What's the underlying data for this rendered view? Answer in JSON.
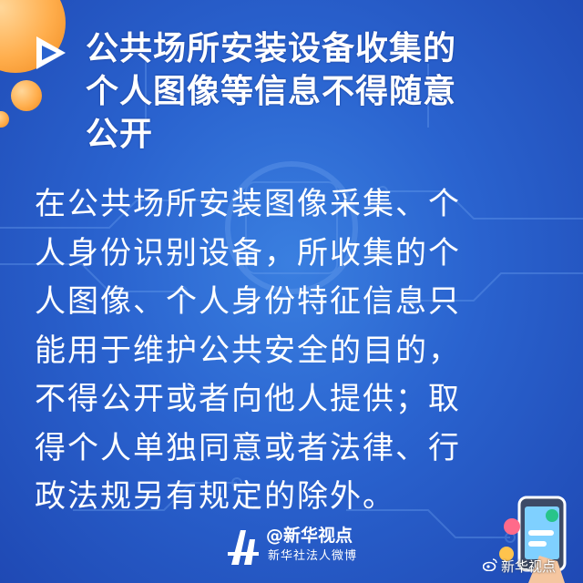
{
  "title": "公共场所安装设备收集的\n个人图像等信息不得随意\n公开",
  "body": "在公共场所安装图像采集、个\n人身份识别设备，所收集的个\n人图像、个人身份特征信息只\n能用于维护公共安全的目的，\n不得公开或者向他人提供；取\n得个人单独同意或者法律、行\n政法规另有规定的除外。",
  "logo": {
    "handle": "@新华视点",
    "subtitle": "新华社法人微博"
  },
  "watermark": "新华视点",
  "colors": {
    "background": "#2a63cf",
    "accent_orange": "#ffae4d",
    "text": "#ffffff"
  },
  "icons": [
    "play-triangle-icon",
    "weibo-icon",
    "phone-icon"
  ]
}
